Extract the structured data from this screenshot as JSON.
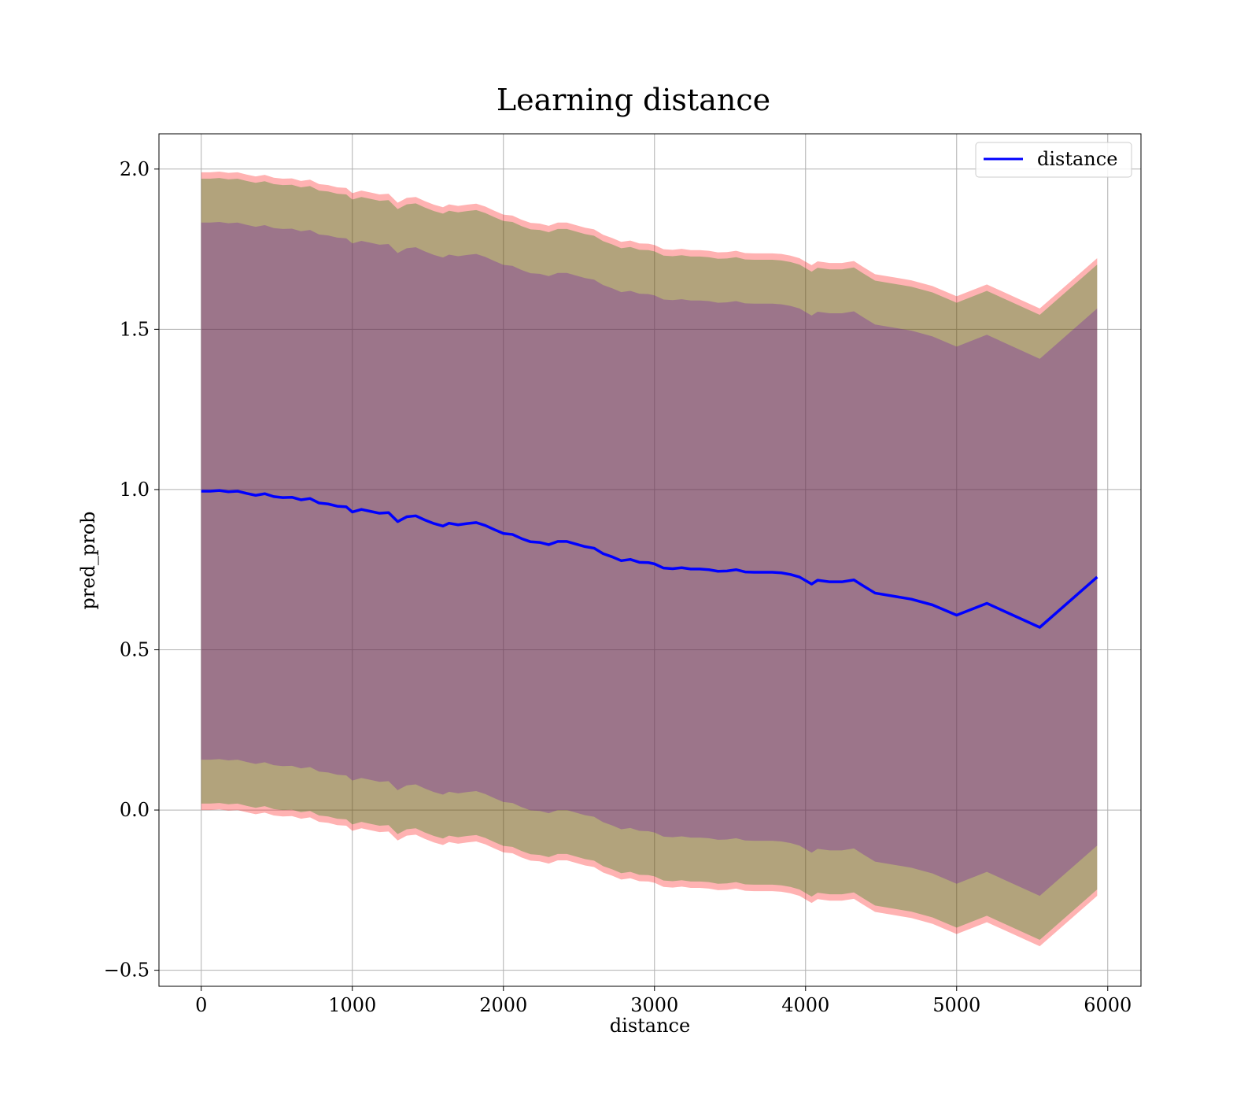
{
  "chart_data": {
    "type": "area",
    "title": "Learning distance",
    "xlabel": "distance",
    "ylabel": "pred_prob",
    "xlim": [
      -280,
      6220
    ],
    "ylim": [
      -0.55,
      2.11
    ],
    "xticks": [
      0,
      1000,
      2000,
      3000,
      4000,
      5000,
      6000
    ],
    "yticks": [
      -0.5,
      0.0,
      0.5,
      1.0,
      1.5,
      2.0
    ],
    "xtick_labels": [
      "0",
      "1000",
      "2000",
      "3000",
      "4000",
      "5000",
      "6000"
    ],
    "ytick_labels": [
      "−0.5",
      "0.0",
      "0.5",
      "1.0",
      "1.5",
      "2.0"
    ],
    "grid": true,
    "legend_position": "top-right",
    "series": [
      {
        "name": "distance",
        "color": "#0000ff",
        "x": [
          0,
          60,
          120,
          180,
          240,
          300,
          360,
          420,
          480,
          540,
          600,
          660,
          720,
          780,
          840,
          900,
          960,
          1000,
          1060,
          1120,
          1180,
          1240,
          1300,
          1360,
          1420,
          1480,
          1540,
          1600,
          1640,
          1700,
          1760,
          1820,
          1880,
          1940,
          2000,
          2060,
          2120,
          2180,
          2240,
          2300,
          2360,
          2420,
          2480,
          2540,
          2600,
          2660,
          2720,
          2780,
          2840,
          2900,
          2960,
          3000,
          3060,
          3120,
          3180,
          3240,
          3300,
          3360,
          3420,
          3480,
          3540,
          3600,
          3660,
          3720,
          3780,
          3840,
          3900,
          3960,
          4040,
          4080,
          4160,
          4240,
          4320,
          4380,
          4460,
          4700,
          4840,
          5000,
          5200,
          5550,
          5930
        ],
        "y": [
          0.995,
          0.995,
          0.997,
          0.993,
          0.995,
          0.988,
          0.982,
          0.987,
          0.978,
          0.975,
          0.976,
          0.968,
          0.972,
          0.958,
          0.955,
          0.948,
          0.946,
          0.93,
          0.938,
          0.932,
          0.926,
          0.928,
          0.9,
          0.915,
          0.918,
          0.905,
          0.894,
          0.886,
          0.895,
          0.89,
          0.894,
          0.897,
          0.888,
          0.875,
          0.863,
          0.86,
          0.847,
          0.837,
          0.835,
          0.828,
          0.838,
          0.838,
          0.83,
          0.822,
          0.817,
          0.8,
          0.79,
          0.778,
          0.782,
          0.773,
          0.772,
          0.768,
          0.755,
          0.753,
          0.756,
          0.752,
          0.752,
          0.75,
          0.745,
          0.746,
          0.75,
          0.743,
          0.742,
          0.742,
          0.742,
          0.74,
          0.735,
          0.727,
          0.705,
          0.717,
          0.712,
          0.712,
          0.718,
          0.7,
          0.677,
          0.658,
          0.64,
          0.608,
          0.645,
          0.57,
          0.727
        ]
      }
    ],
    "bands": [
      {
        "name": "",
        "color": "#ff0000",
        "opacity": 0.3,
        "half_width": [
          0.995,
          0.995,
          0.995,
          0.995,
          0.995,
          0.995,
          0.995,
          0.995,
          0.995,
          0.995,
          0.995,
          0.995,
          0.995,
          0.995,
          0.995,
          0.995,
          0.995,
          0.995,
          0.995,
          0.995,
          0.995,
          0.995,
          0.995,
          0.995,
          0.995,
          0.995,
          0.995,
          0.995,
          0.995,
          0.995,
          0.995,
          0.995,
          0.995,
          0.995,
          0.995,
          0.995,
          0.995,
          0.995,
          0.995,
          0.995,
          0.995,
          0.995,
          0.995,
          0.995,
          0.995,
          0.995,
          0.995,
          0.995,
          0.995,
          0.995,
          0.995,
          0.995,
          0.995,
          0.995,
          0.995,
          0.995,
          0.995,
          0.995,
          0.995,
          0.995,
          0.995,
          0.995,
          0.995,
          0.995,
          0.995,
          0.995,
          0.995,
          0.995,
          0.995,
          0.995,
          0.995,
          0.995,
          0.995,
          0.995,
          0.995,
          0.995,
          0.995,
          0.995,
          0.995,
          0.995,
          0.995
        ]
      },
      {
        "name": "",
        "color": "#008000",
        "opacity": 0.3,
        "half_width": [
          0.975,
          0.975,
          0.975,
          0.975,
          0.975,
          0.975,
          0.975,
          0.975,
          0.975,
          0.975,
          0.975,
          0.975,
          0.975,
          0.975,
          0.975,
          0.975,
          0.975,
          0.975,
          0.975,
          0.975,
          0.975,
          0.975,
          0.975,
          0.975,
          0.975,
          0.975,
          0.975,
          0.975,
          0.975,
          0.975,
          0.975,
          0.975,
          0.975,
          0.975,
          0.975,
          0.975,
          0.975,
          0.975,
          0.975,
          0.975,
          0.975,
          0.975,
          0.975,
          0.975,
          0.975,
          0.975,
          0.975,
          0.975,
          0.975,
          0.975,
          0.975,
          0.975,
          0.975,
          0.975,
          0.975,
          0.975,
          0.975,
          0.975,
          0.975,
          0.975,
          0.975,
          0.975,
          0.975,
          0.975,
          0.975,
          0.975,
          0.975,
          0.975,
          0.975,
          0.975,
          0.975,
          0.975,
          0.975,
          0.975,
          0.975,
          0.975,
          0.975,
          0.975,
          0.975,
          0.975,
          0.975
        ]
      },
      {
        "name": "",
        "color": "#6a0dad",
        "opacity": 0.3,
        "half_width": [
          0.838,
          0.838,
          0.838,
          0.838,
          0.838,
          0.838,
          0.838,
          0.838,
          0.838,
          0.838,
          0.838,
          0.838,
          0.838,
          0.838,
          0.838,
          0.838,
          0.838,
          0.838,
          0.838,
          0.838,
          0.838,
          0.838,
          0.838,
          0.838,
          0.838,
          0.838,
          0.838,
          0.838,
          0.838,
          0.838,
          0.838,
          0.838,
          0.838,
          0.838,
          0.838,
          0.838,
          0.838,
          0.838,
          0.838,
          0.838,
          0.838,
          0.838,
          0.838,
          0.838,
          0.838,
          0.838,
          0.838,
          0.838,
          0.838,
          0.838,
          0.838,
          0.838,
          0.838,
          0.838,
          0.838,
          0.838,
          0.838,
          0.838,
          0.838,
          0.838,
          0.838,
          0.838,
          0.838,
          0.838,
          0.838,
          0.838,
          0.838,
          0.838,
          0.838,
          0.838,
          0.838,
          0.838,
          0.838,
          0.838,
          0.838,
          0.838,
          0.838,
          0.838,
          0.838,
          0.838,
          0.838
        ]
      }
    ]
  }
}
